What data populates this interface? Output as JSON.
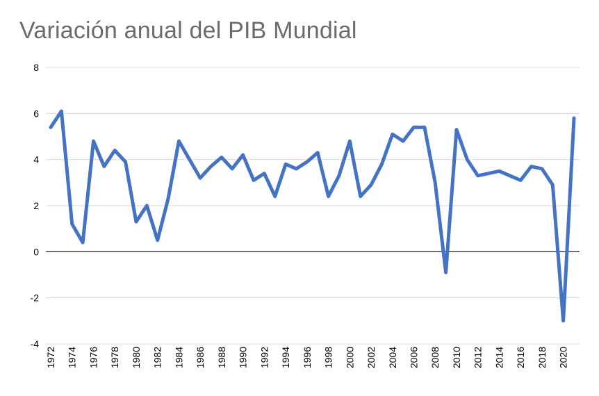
{
  "chart_data": {
    "type": "line",
    "title": "Variación anual del PIB Mundial",
    "xlabel": "",
    "ylabel": "",
    "ylim": [
      -4,
      8
    ],
    "yticks": [
      8,
      6,
      4,
      2,
      0,
      -2,
      -4
    ],
    "xticks": [
      "1972",
      "1974",
      "1976",
      "1978",
      "1980",
      "1982",
      "1984",
      "1986",
      "1988",
      "1990",
      "1992",
      "1994",
      "1996",
      "1998",
      "2000",
      "2002",
      "2004",
      "2006",
      "2008",
      "2010",
      "2012",
      "2014",
      "2016",
      "2018",
      "2020"
    ],
    "grid": true,
    "legend": "none",
    "series_color": "#4472c4",
    "x": [
      1972,
      1973,
      1974,
      1975,
      1976,
      1977,
      1978,
      1979,
      1980,
      1981,
      1982,
      1983,
      1984,
      1985,
      1986,
      1987,
      1988,
      1989,
      1990,
      1991,
      1992,
      1993,
      1994,
      1995,
      1996,
      1997,
      1998,
      1999,
      2000,
      2001,
      2002,
      2003,
      2004,
      2005,
      2006,
      2007,
      2008,
      2009,
      2010,
      2011,
      2012,
      2013,
      2014,
      2015,
      2016,
      2017,
      2018,
      2019,
      2020,
      2021
    ],
    "series": [
      {
        "values": [
          5.4,
          6.1,
          1.2,
          0.4,
          4.8,
          3.7,
          4.4,
          3.9,
          1.3,
          2.0,
          0.5,
          2.3,
          4.8,
          4.0,
          3.2,
          3.7,
          4.1,
          3.6,
          4.2,
          3.1,
          3.4,
          2.4,
          3.8,
          3.6,
          3.9,
          4.3,
          2.4,
          3.3,
          4.8,
          2.4,
          2.9,
          3.8,
          5.1,
          4.8,
          5.4,
          5.4,
          3.0,
          -0.9,
          5.3,
          4.0,
          3.3,
          3.4,
          3.5,
          3.3,
          3.1,
          3.7,
          3.6,
          2.9,
          -3.0,
          5.8
        ]
      }
    ]
  }
}
